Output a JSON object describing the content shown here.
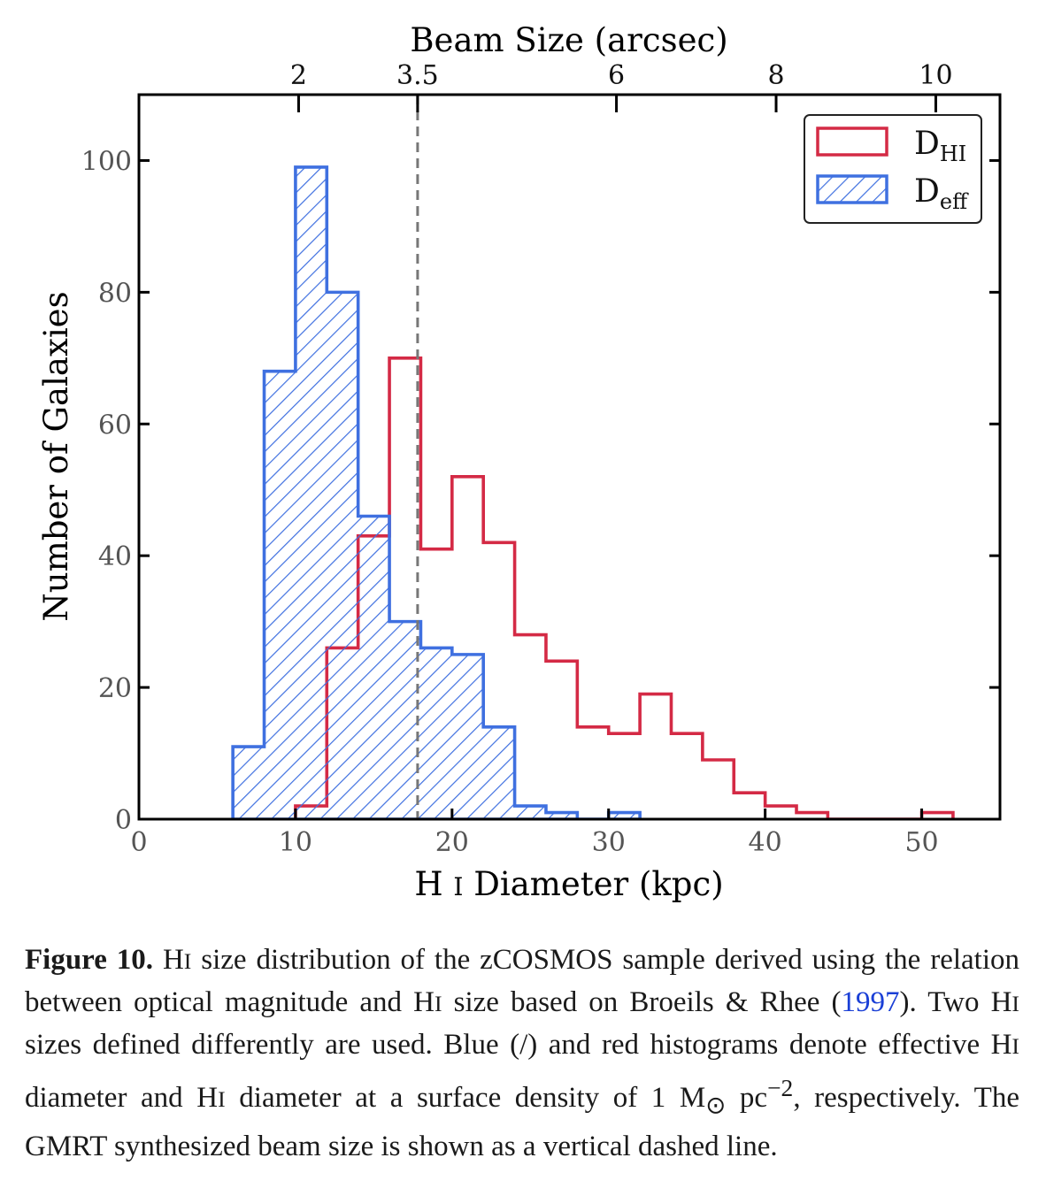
{
  "chart_data": {
    "type": "histogram",
    "xlabel": "H I Diameter (kpc)",
    "ylabel": "Number of Galaxies",
    "top_axis_label": "Beam Size (arcsec)",
    "xlim": [
      0,
      55
    ],
    "ylim": [
      0,
      110
    ],
    "x_ticks": [
      "0",
      "10",
      "20",
      "30",
      "40",
      "50"
    ],
    "x_tick_values": [
      0,
      10,
      20,
      30,
      40,
      50
    ],
    "y_ticks": [
      "0",
      "20",
      "40",
      "60",
      "80",
      "100"
    ],
    "y_tick_values": [
      0,
      20,
      40,
      60,
      80,
      100
    ],
    "top_ticks": [
      "2",
      "3.5",
      "6",
      "8",
      "10"
    ],
    "top_tick_positions_kpc": [
      10.2,
      17.8,
      30.5,
      40.7,
      50.9
    ],
    "beam_line_kpc": 17.8,
    "legend_position": "top-right",
    "series": [
      {
        "name": "D_HI",
        "name_main": "D",
        "name_sub": "HI",
        "color": "#d42a45",
        "style": "step-outline",
        "bin_edges": [
          10,
          12,
          14,
          16,
          18,
          20,
          22,
          24,
          26,
          28,
          30,
          32,
          34,
          36,
          38,
          40,
          42,
          44,
          46,
          48,
          50,
          52
        ],
        "counts": [
          2,
          26,
          43,
          70,
          41,
          52,
          42,
          28,
          24,
          14,
          13,
          19,
          13,
          9,
          4,
          2,
          1,
          0,
          0,
          0,
          1
        ]
      },
      {
        "name": "D_eff",
        "name_main": "D",
        "name_sub": "eff",
        "color": "#3f70e0",
        "style": "hatched",
        "bin_edges": [
          6,
          8,
          10,
          12,
          14,
          16,
          18,
          20,
          22,
          24,
          26,
          28,
          30,
          32
        ],
        "counts": [
          11,
          68,
          99,
          80,
          46,
          30,
          26,
          25,
          14,
          2,
          1,
          0,
          1
        ]
      }
    ]
  },
  "caption": {
    "label": "Figure 10.",
    "p1": "H",
    "p2": "I",
    "p3": " size distribution of the zCOSMOS sample derived using the relation between optical magnitude and H",
    "p4": "I",
    "p5": " size based on Broeils & Rhee (",
    "ref": "1997",
    "p6": "). Two H",
    "p7": "I",
    "p8": " sizes defined differently are used. Blue (/) and red histograms denote effective H",
    "p9": "I",
    "p10": " diameter and H",
    "p11": "I",
    "p12": " diameter at a surface density of 1 M",
    "sun": "⊙",
    "p13": " pc",
    "exp": "−2",
    "p14": ", respectively. The GMRT synthesized beam size is shown as a vertical dashed line."
  }
}
